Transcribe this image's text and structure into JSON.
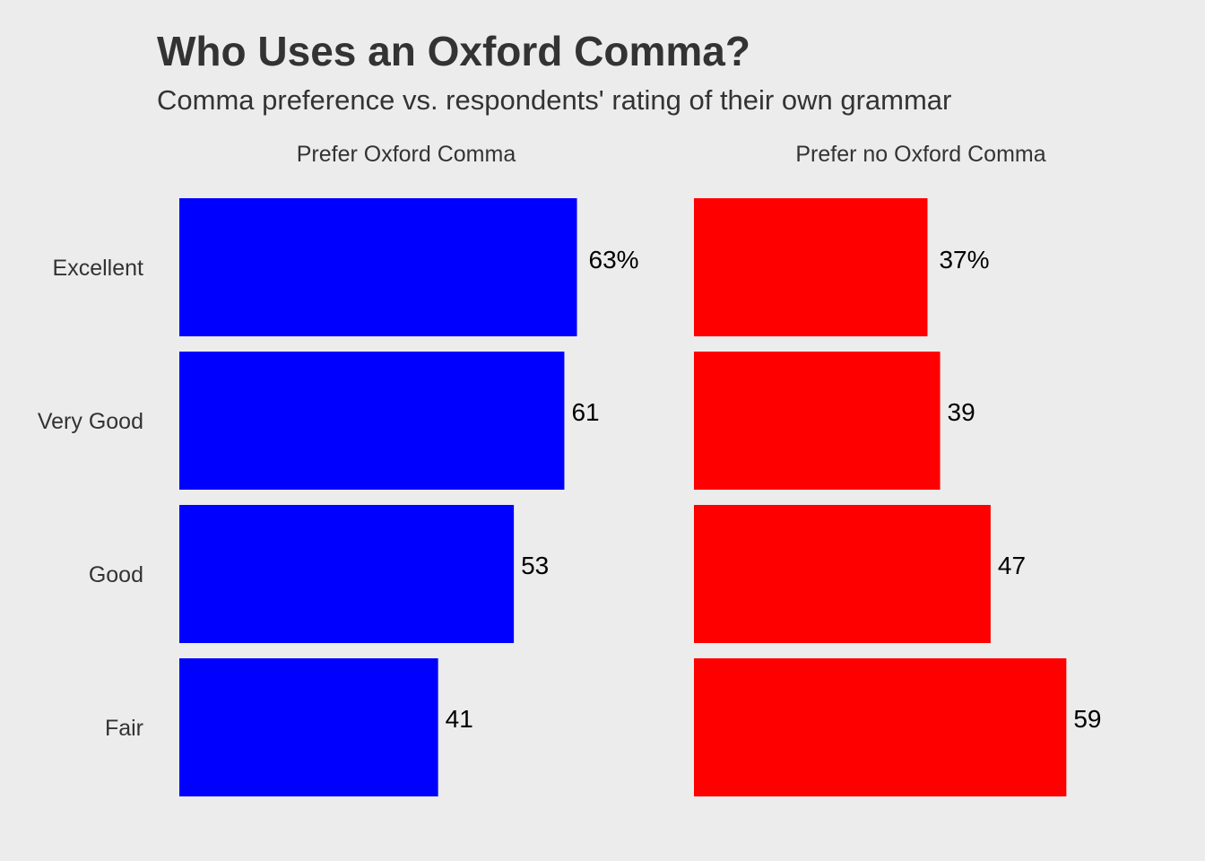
{
  "header": {
    "title": "Who Uses an Oxford Comma?",
    "subtitle": "Comma preference vs. respondents' rating of their own grammar"
  },
  "chart_data": {
    "type": "bar",
    "orientation": "horizontal",
    "title": "Who Uses an Oxford Comma?",
    "subtitle": "Comma preference vs. respondents' rating of their own grammar",
    "categories": [
      "Excellent",
      "Very Good",
      "Good",
      "Fair"
    ],
    "series": [
      {
        "name": "Prefer Oxford Comma",
        "values": [
          63,
          61,
          53,
          41
        ],
        "labels": [
          "63%",
          "61",
          "53",
          "41"
        ],
        "color": "#0000ff"
      },
      {
        "name": "Prefer no Oxford Comma",
        "values": [
          37,
          39,
          47,
          59
        ],
        "labels": [
          "37%",
          "39",
          "47",
          "59"
        ],
        "color": "#ff0000"
      }
    ],
    "xlim": [
      0,
      100
    ],
    "grid": false,
    "legend": "none",
    "layout": "facets side by side"
  }
}
